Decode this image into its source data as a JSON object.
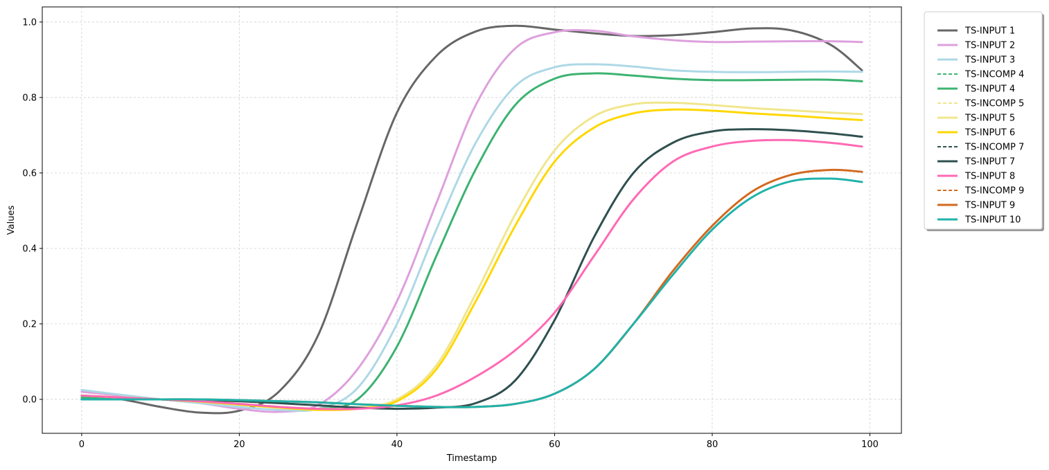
{
  "chart_data": {
    "type": "line",
    "title": "",
    "xlabel": "Timestamp",
    "ylabel": "Values",
    "xlim": [
      -5,
      104
    ],
    "ylim": [
      -0.09,
      1.04
    ],
    "xticks": [
      0,
      20,
      40,
      60,
      80,
      100
    ],
    "yticks": [
      0.0,
      0.2,
      0.4,
      0.6,
      0.8,
      1.0
    ],
    "xtick_labels": [
      "0",
      "20",
      "40",
      "60",
      "80",
      "100"
    ],
    "ytick_labels": [
      "0.0",
      "0.2",
      "0.4",
      "0.6",
      "0.8",
      "1.0"
    ],
    "grid": true,
    "legend_position": "outside-right-top",
    "series": [
      {
        "name": "TS-INPUT 1",
        "color": "#666666",
        "style": "solid",
        "x": [
          0,
          5,
          10,
          15,
          20,
          25,
          30,
          35,
          40,
          45,
          50,
          55,
          60,
          65,
          70,
          75,
          80,
          85,
          90,
          95,
          99
        ],
        "values": [
          0.01,
          0.0,
          -0.02,
          -0.035,
          -0.03,
          0.02,
          0.17,
          0.47,
          0.76,
          0.91,
          0.975,
          0.99,
          0.98,
          0.97,
          0.963,
          0.965,
          0.973,
          0.983,
          0.978,
          0.94,
          0.872
        ]
      },
      {
        "name": "TS-INPUT 2",
        "color": "#DDA0DD",
        "style": "solid",
        "x": [
          0,
          5,
          10,
          15,
          20,
          25,
          30,
          35,
          40,
          45,
          50,
          55,
          60,
          65,
          70,
          75,
          80,
          85,
          90,
          95,
          99
        ],
        "values": [
          0.02,
          0.01,
          0.0,
          -0.01,
          -0.025,
          -0.033,
          -0.015,
          0.08,
          0.26,
          0.52,
          0.78,
          0.93,
          0.973,
          0.977,
          0.962,
          0.952,
          0.947,
          0.948,
          0.949,
          0.949,
          0.947
        ]
      },
      {
        "name": "TS-INPUT 3",
        "color": "#ADD8E6",
        "style": "solid",
        "x": [
          0,
          5,
          10,
          15,
          20,
          25,
          30,
          35,
          40,
          45,
          50,
          55,
          60,
          65,
          70,
          75,
          80,
          85,
          90,
          95,
          99
        ],
        "values": [
          0.025,
          0.012,
          0.0,
          -0.01,
          -0.02,
          -0.028,
          -0.025,
          0.03,
          0.2,
          0.45,
          0.68,
          0.83,
          0.88,
          0.888,
          0.882,
          0.872,
          0.868,
          0.867,
          0.868,
          0.869,
          0.868
        ]
      },
      {
        "name": "TS-INCOMP 4",
        "color": "#3CB371",
        "style": "dashed",
        "x": [],
        "values": []
      },
      {
        "name": "TS-INPUT 4",
        "color": "#3CB371",
        "style": "solid",
        "x": [
          0,
          5,
          10,
          15,
          20,
          25,
          30,
          35,
          40,
          45,
          50,
          55,
          60,
          65,
          70,
          75,
          80,
          85,
          90,
          95,
          99
        ],
        "values": [
          0.005,
          0.003,
          0.0,
          -0.005,
          -0.012,
          -0.02,
          -0.025,
          0.0,
          0.14,
          0.38,
          0.61,
          0.78,
          0.85,
          0.864,
          0.858,
          0.85,
          0.846,
          0.846,
          0.847,
          0.847,
          0.843
        ]
      },
      {
        "name": "TS-INCOMP 5",
        "color": "#F0E68C",
        "style": "dashed",
        "x": [],
        "values": []
      },
      {
        "name": "TS-INPUT 5",
        "color": "#F0E68C",
        "style": "solid",
        "x": [
          0,
          5,
          10,
          15,
          20,
          25,
          30,
          35,
          40,
          45,
          50,
          55,
          60,
          65,
          70,
          75,
          80,
          85,
          90,
          95,
          99
        ],
        "values": [
          0.01,
          0.005,
          0.0,
          -0.005,
          -0.012,
          -0.02,
          -0.025,
          -0.022,
          0.0,
          0.09,
          0.28,
          0.49,
          0.66,
          0.75,
          0.782,
          0.786,
          0.78,
          0.772,
          0.766,
          0.76,
          0.756
        ]
      },
      {
        "name": "TS-INPUT 6",
        "color": "#FFD700",
        "style": "solid",
        "x": [
          0,
          5,
          10,
          15,
          20,
          25,
          30,
          35,
          40,
          45,
          50,
          55,
          60,
          65,
          70,
          75,
          80,
          85,
          90,
          95,
          99
        ],
        "values": [
          0.01,
          0.005,
          0.0,
          -0.006,
          -0.014,
          -0.022,
          -0.028,
          -0.025,
          -0.005,
          0.08,
          0.26,
          0.46,
          0.63,
          0.72,
          0.758,
          0.768,
          0.765,
          0.758,
          0.752,
          0.745,
          0.74
        ]
      },
      {
        "name": "TS-INCOMP 7",
        "color": "#2F4F4F",
        "style": "dashed",
        "x": [],
        "values": []
      },
      {
        "name": "TS-INPUT 7",
        "color": "#2F4F4F",
        "style": "solid",
        "x": [
          0,
          5,
          10,
          15,
          20,
          25,
          30,
          35,
          40,
          45,
          50,
          55,
          60,
          65,
          70,
          75,
          80,
          85,
          90,
          95,
          99
        ],
        "values": [
          0.0,
          0.0,
          0.0,
          -0.002,
          -0.005,
          -0.01,
          -0.016,
          -0.022,
          -0.025,
          -0.022,
          -0.01,
          0.05,
          0.21,
          0.43,
          0.6,
          0.68,
          0.71,
          0.716,
          0.713,
          0.705,
          0.696
        ]
      },
      {
        "name": "TS-INPUT 8",
        "color": "#FF69B4",
        "style": "solid",
        "x": [
          0,
          5,
          10,
          15,
          20,
          25,
          30,
          35,
          40,
          45,
          50,
          55,
          60,
          65,
          70,
          75,
          80,
          85,
          90,
          95,
          99
        ],
        "values": [
          0.01,
          0.005,
          0.0,
          -0.005,
          -0.012,
          -0.02,
          -0.025,
          -0.025,
          -0.016,
          0.01,
          0.06,
          0.13,
          0.23,
          0.38,
          0.53,
          0.63,
          0.67,
          0.685,
          0.687,
          0.68,
          0.67
        ]
      },
      {
        "name": "TS-INCOMP 9",
        "color": "#D2691E",
        "style": "dashed",
        "x": [],
        "values": []
      },
      {
        "name": "TS-INPUT 9",
        "color": "#D2691E",
        "style": "solid",
        "x": [
          0,
          5,
          10,
          15,
          20,
          25,
          30,
          35,
          40,
          45,
          50,
          55,
          60,
          65,
          70,
          75,
          80,
          85,
          90,
          95,
          99
        ],
        "values": [
          0.0,
          0.0,
          0.0,
          0.0,
          -0.002,
          -0.005,
          -0.008,
          -0.013,
          -0.017,
          -0.02,
          -0.02,
          -0.012,
          0.015,
          0.08,
          0.2,
          0.34,
          0.46,
          0.55,
          0.595,
          0.608,
          0.603
        ]
      },
      {
        "name": "TS-INPUT 10",
        "color": "#20B2AA",
        "style": "solid",
        "x": [
          0,
          5,
          10,
          15,
          20,
          25,
          30,
          35,
          40,
          45,
          50,
          55,
          60,
          65,
          70,
          75,
          80,
          85,
          90,
          95,
          99
        ],
        "values": [
          0.0,
          0.0,
          0.0,
          0.0,
          -0.002,
          -0.005,
          -0.008,
          -0.013,
          -0.017,
          -0.02,
          -0.02,
          -0.012,
          0.015,
          0.08,
          0.2,
          0.33,
          0.45,
          0.535,
          0.578,
          0.585,
          0.576
        ]
      }
    ]
  }
}
